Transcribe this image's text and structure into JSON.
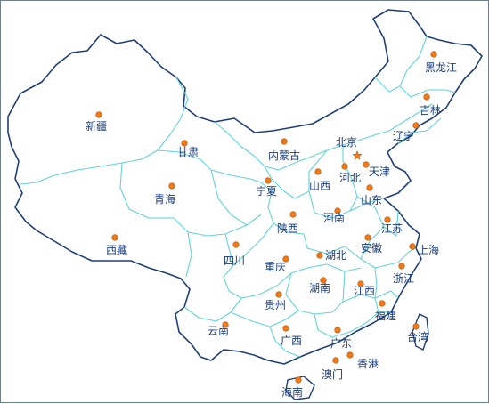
{
  "provinces": [
    {
      "id": "xinjiang",
      "name": "新疆"
    },
    {
      "id": "gansu",
      "name": "甘肃"
    },
    {
      "id": "neimenggu",
      "name": "内蒙古"
    },
    {
      "id": "heilongjiang",
      "name": "黑龙江"
    },
    {
      "id": "jilin",
      "name": "吉林"
    },
    {
      "id": "liaoning",
      "name": "辽宁"
    },
    {
      "id": "beijing",
      "name": "北京"
    },
    {
      "id": "tianjin",
      "name": "天津"
    },
    {
      "id": "hebei",
      "name": "河北"
    },
    {
      "id": "shanxi",
      "name": "山西"
    },
    {
      "id": "shandong",
      "name": "山东"
    },
    {
      "id": "ningxia",
      "name": "宁夏"
    },
    {
      "id": "qinghai",
      "name": "青海"
    },
    {
      "id": "shaanxi",
      "name": "陕西"
    },
    {
      "id": "henan",
      "name": "河南"
    },
    {
      "id": "jiangsu",
      "name": "江苏"
    },
    {
      "id": "xizang",
      "name": "西藏"
    },
    {
      "id": "sichuan",
      "name": "四川"
    },
    {
      "id": "anhui",
      "name": "安徽"
    },
    {
      "id": "shanghai",
      "name": "上海"
    },
    {
      "id": "hubei",
      "name": "湖北"
    },
    {
      "id": "chongqing",
      "name": "重庆"
    },
    {
      "id": "zhejiang",
      "name": "浙江"
    },
    {
      "id": "hunan",
      "name": "湖南"
    },
    {
      "id": "jiangxi",
      "name": "江西"
    },
    {
      "id": "guizhou",
      "name": "贵州"
    },
    {
      "id": "fujian",
      "name": "福建"
    },
    {
      "id": "yunnan",
      "name": "云南"
    },
    {
      "id": "guangxi",
      "name": "广西"
    },
    {
      "id": "guangdong",
      "name": "广东"
    },
    {
      "id": "taiwan",
      "name": "台湾"
    },
    {
      "id": "xianggang",
      "name": "香港"
    },
    {
      "id": "aomen",
      "name": "澳门"
    },
    {
      "id": "hainan",
      "name": "海南"
    }
  ],
  "colors": {
    "outline": "#1f3f7a",
    "internal_border": "#62d3d8",
    "marker": "#ef7a18",
    "label": "#1a3c7c"
  },
  "capital_marker": "star"
}
